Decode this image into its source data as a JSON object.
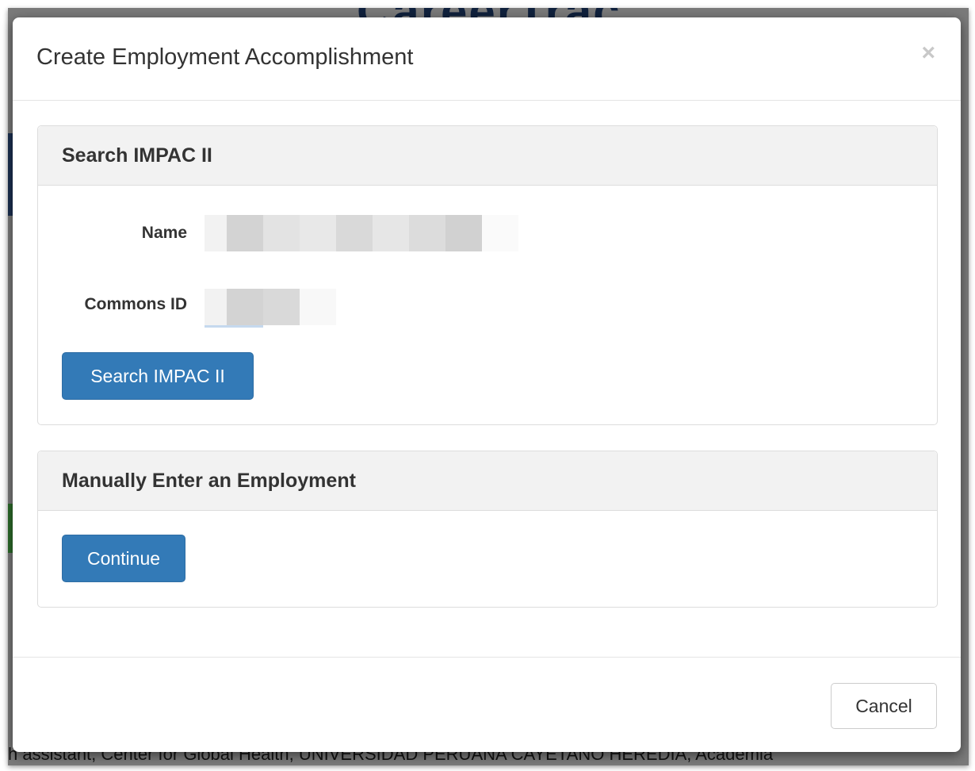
{
  "background": {
    "logo_text": "CareerTrac",
    "footer_text": "h assistant, Center for Global Health, UNIVERSIDAD PERUANA CAYETANO HEREDIA, Academia"
  },
  "modal": {
    "title": "Create Employment Accomplishment",
    "close_label": "×",
    "search_panel": {
      "title": "Search IMPAC II",
      "name_label": "Name",
      "commons_id_label": "Commons ID",
      "search_button": "Search IMPAC II"
    },
    "manual_panel": {
      "title": "Manually Enter an Employment",
      "continue_button": "Continue"
    },
    "footer": {
      "cancel_button": "Cancel"
    }
  },
  "colors": {
    "primary": "#337ab7",
    "backdrop": "#7a7a7a"
  }
}
